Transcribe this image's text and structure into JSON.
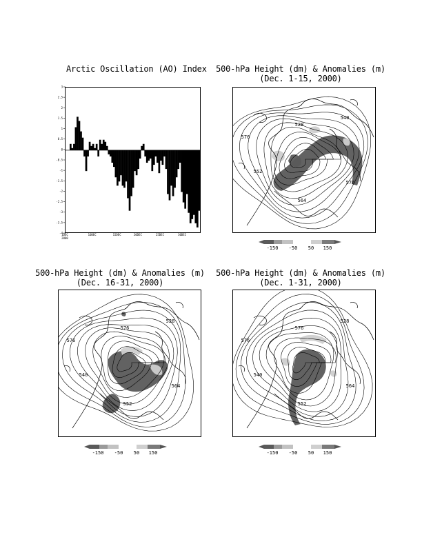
{
  "chart_data": [
    {
      "type": "bar",
      "title": "Arctic Oscillation (AO) Index",
      "ylim": [
        -4,
        3
      ],
      "yticks": [
        "3",
        "2.5",
        "2",
        "1.5",
        "1",
        "0.5",
        "0",
        "-0.5",
        "-1",
        "-1.5",
        "-2",
        "-2.5",
        "-3",
        "-3.5",
        "-4"
      ],
      "xticks": [
        "1DEC\n2000",
        "10DEC",
        "15DEC",
        "20DEC",
        "25DEC",
        "30DEC"
      ],
      "grid": false,
      "values": [
        0.3,
        0.1,
        0.3,
        1.1,
        1.6,
        1.4,
        0.9,
        0.6,
        -0.3,
        -1.0,
        -0.3,
        0.4,
        0.2,
        0.3,
        0.1,
        0.3,
        -0.3,
        0.5,
        0.3,
        0.5,
        0.4,
        0.2,
        -0.2,
        -0.3,
        -0.6,
        -0.8,
        -1.3,
        -1.7,
        -1.5,
        -1.2,
        -1.7,
        -1.8,
        -1.5,
        -2.3,
        -2.9,
        -2.2,
        -1.8,
        -1.0,
        -1.2,
        -0.9,
        -0.4,
        0.2,
        0.3,
        -0.3,
        -0.6,
        -0.5,
        -0.4,
        -1.0,
        -0.7,
        -0.3,
        -0.6,
        -1.1,
        -0.5,
        -0.7,
        -0.3,
        -0.9,
        -2.1,
        -2.4,
        -1.7,
        -2.2,
        -1.8,
        -1.3,
        -0.9,
        -0.6,
        -2.0,
        -2.5,
        -2.8,
        -2.1,
        -3.0,
        -3.5,
        -3.3,
        -3.1,
        -3.5,
        -3.7,
        -2.9
      ]
    },
    {
      "type": "heatmap",
      "title": "500-hPa Height (dm) & Anomalies (m)",
      "subtitle": "(Dec. 1-15, 2000)",
      "contour_labels": [
        "528",
        "540",
        "552",
        "564",
        "576",
        "576"
      ],
      "colorbar": [
        "-150",
        "-50",
        "50",
        "150"
      ]
    },
    {
      "type": "heatmap",
      "title": "500-hPa Height (dm) & Anomalies (m)",
      "subtitle": "(Dec. 16-31, 2000)",
      "contour_labels": [
        "576",
        "528",
        "540",
        "552",
        "564",
        "576"
      ],
      "colorbar": [
        "-150",
        "-50",
        "50",
        "150"
      ]
    },
    {
      "type": "heatmap",
      "title": "500-hPa Height (dm) & Anomalies (m)",
      "subtitle": "(Dec. 1-31, 2000)",
      "contour_labels": [
        "576",
        "528",
        "540",
        "552",
        "564",
        "576"
      ],
      "colorbar": [
        "-150",
        "-50",
        "50",
        "150"
      ]
    }
  ],
  "colors": {
    "negative_dark": "#5a5a5a",
    "negative_light": "#9a9a9a",
    "positive_light": "#cfcfcf",
    "positive_dark": "#7a7a7a",
    "bar": "#000000"
  }
}
